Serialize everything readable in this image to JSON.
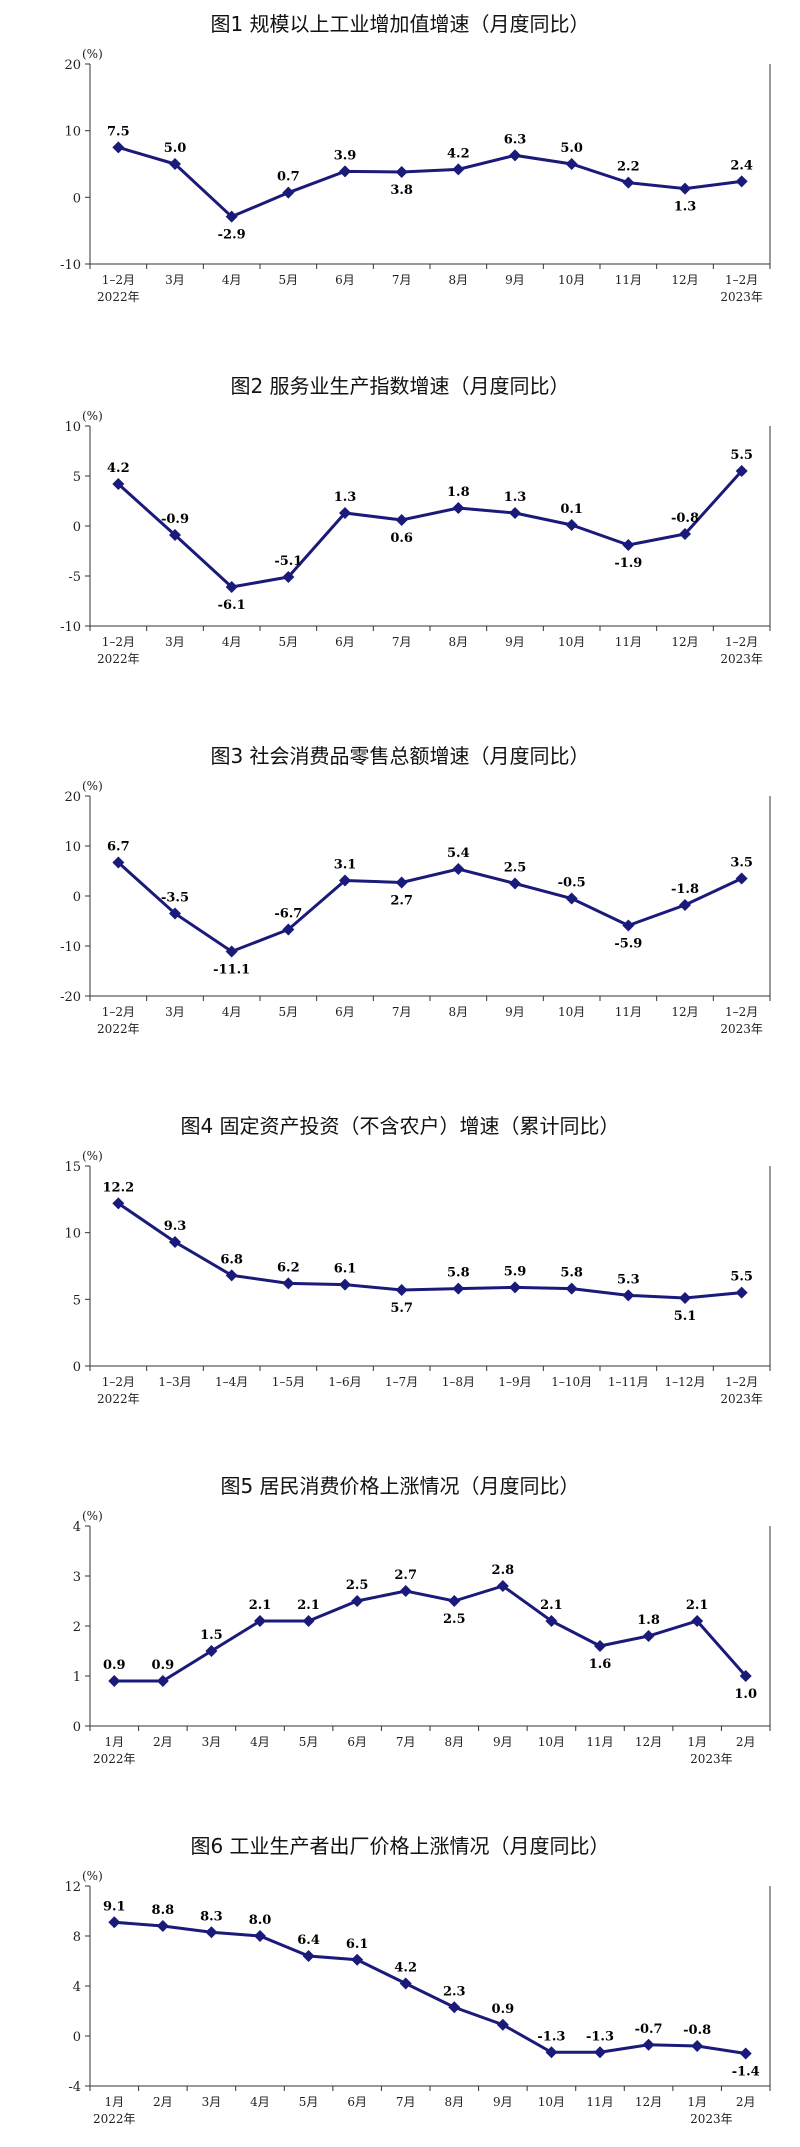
{
  "chart_data": [
    {
      "type": "line",
      "title": "图1  规模以上工业增加值增速（月度同比）",
      "unit": "(%)",
      "ylim": [
        -10,
        20
      ],
      "yticks": [
        -10,
        0,
        10,
        20
      ],
      "categories": [
        "1–2月",
        "3月",
        "4月",
        "5月",
        "6月",
        "7月",
        "8月",
        "9月",
        "10月",
        "11月",
        "12月",
        "1–2月"
      ],
      "year_labels": [
        "2022年",
        "2023年"
      ],
      "series": [
        {
          "values": [
            7.5,
            5.0,
            -2.9,
            0.7,
            3.9,
            3.8,
            4.2,
            6.3,
            5.0,
            2.2,
            1.3,
            2.4
          ]
        }
      ],
      "labels": [
        "7.5",
        "5.0",
        "-2.9",
        "0.7",
        "3.9",
        "3.8",
        "4.2",
        "6.3",
        "5.0",
        "2.2",
        "1.3",
        "2.4"
      ],
      "grid": false
    },
    {
      "type": "line",
      "title": "图2  服务业生产指数增速（月度同比）",
      "unit": "(%)",
      "ylim": [
        -10,
        10
      ],
      "yticks": [
        -10,
        -5,
        0,
        5,
        10
      ],
      "categories": [
        "1–2月",
        "3月",
        "4月",
        "5月",
        "6月",
        "7月",
        "8月",
        "9月",
        "10月",
        "11月",
        "12月",
        "1–2月"
      ],
      "year_labels": [
        "2022年",
        "2023年"
      ],
      "series": [
        {
          "values": [
            4.2,
            -0.9,
            -6.1,
            -5.1,
            1.3,
            0.6,
            1.8,
            1.3,
            0.1,
            -1.9,
            -0.8,
            5.5
          ]
        }
      ],
      "labels": [
        "4.2",
        "-0.9",
        "-6.1",
        "-5.1",
        "1.3",
        "0.6",
        "1.8",
        "1.3",
        "0.1",
        "-1.9",
        "-0.8",
        "5.5"
      ],
      "grid": false
    },
    {
      "type": "line",
      "title": "图3  社会消费品零售总额增速（月度同比）",
      "unit": "(%)",
      "ylim": [
        -20,
        20
      ],
      "yticks": [
        -20,
        -10,
        0,
        10,
        20
      ],
      "categories": [
        "1–2月",
        "3月",
        "4月",
        "5月",
        "6月",
        "7月",
        "8月",
        "9月",
        "10月",
        "11月",
        "12月",
        "1–2月"
      ],
      "year_labels": [
        "2022年",
        "2023年"
      ],
      "series": [
        {
          "values": [
            6.7,
            -3.5,
            -11.1,
            -6.7,
            3.1,
            2.7,
            5.4,
            2.5,
            -0.5,
            -5.9,
            -1.8,
            3.5
          ]
        }
      ],
      "labels": [
        "6.7",
        "-3.5",
        "-11.1",
        "-6.7",
        "3.1",
        "2.7",
        "5.4",
        "2.5",
        "-0.5",
        "-5.9",
        "-1.8",
        "3.5"
      ],
      "grid": false
    },
    {
      "type": "line",
      "title": "图4  固定资产投资（不含农户）增速（累计同比）",
      "unit": "(%)",
      "ylim": [
        0,
        15
      ],
      "yticks": [
        0,
        5,
        10,
        15
      ],
      "categories": [
        "1–2月",
        "1–3月",
        "1–4月",
        "1–5月",
        "1–6月",
        "1–7月",
        "1–8月",
        "1–9月",
        "1–10月",
        "1–11月",
        "1–12月",
        "1–2月"
      ],
      "year_labels": [
        "2022年",
        "2023年"
      ],
      "series": [
        {
          "values": [
            12.2,
            9.3,
            6.8,
            6.2,
            6.1,
            5.7,
            5.8,
            5.9,
            5.8,
            5.3,
            5.1,
            5.5
          ]
        }
      ],
      "labels": [
        "12.2",
        "9.3",
        "6.8",
        "6.2",
        "6.1",
        "5.7",
        "5.8",
        "5.9",
        "5.8",
        "5.3",
        "5.1",
        "5.5"
      ],
      "grid": false
    },
    {
      "type": "line",
      "title": "图5  居民消费价格上涨情况（月度同比）",
      "unit": "(%)",
      "ylim": [
        0,
        4
      ],
      "yticks": [
        0,
        1,
        2,
        3,
        4
      ],
      "categories": [
        "1月",
        "2月",
        "3月",
        "4月",
        "5月",
        "6月",
        "7月",
        "8月",
        "9月",
        "10月",
        "11月",
        "12月",
        "1月",
        "2月"
      ],
      "year_labels": [
        "2022年",
        "2023年"
      ],
      "series": [
        {
          "values": [
            0.9,
            0.9,
            1.5,
            2.1,
            2.1,
            2.5,
            2.7,
            2.5,
            2.8,
            2.1,
            1.6,
            1.8,
            2.1,
            1.0
          ]
        }
      ],
      "labels": [
        "0.9",
        "0.9",
        "1.5",
        "2.1",
        "2.1",
        "2.5",
        "2.7",
        "2.5",
        "2.8",
        "2.1",
        "1.6",
        "1.8",
        "2.1",
        "1.0"
      ],
      "grid": false
    },
    {
      "type": "line",
      "title": "图6  工业生产者出厂价格上涨情况（月度同比）",
      "unit": "(%)",
      "ylim": [
        -4,
        12
      ],
      "yticks": [
        -4,
        0,
        4,
        8,
        12
      ],
      "categories": [
        "1月",
        "2月",
        "3月",
        "4月",
        "5月",
        "6月",
        "7月",
        "8月",
        "9月",
        "10月",
        "11月",
        "12月",
        "1月",
        "2月"
      ],
      "year_labels": [
        "2022年",
        "2023年"
      ],
      "series": [
        {
          "values": [
            9.1,
            8.8,
            8.3,
            8.0,
            6.4,
            6.1,
            4.2,
            2.3,
            0.9,
            -1.3,
            -1.3,
            -0.7,
            -0.8,
            -1.4
          ]
        }
      ],
      "labels": [
        "9.1",
        "8.8",
        "8.3",
        "8.0",
        "6.4",
        "6.1",
        "4.2",
        "2.3",
        "0.9",
        "-1.3",
        "-1.3",
        "-0.7",
        "-0.8",
        "-1.4"
      ],
      "grid": false
    }
  ],
  "colors": {
    "line": "#1a1a7a",
    "marker": "#1a1a7a",
    "axis": "#333333"
  }
}
